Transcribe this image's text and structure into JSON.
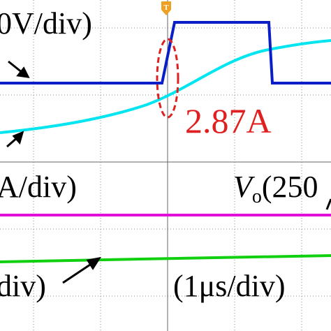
{
  "labels": {
    "ch1_scale": "0V/div)",
    "annotation": "2.87A",
    "ch2_scale": "A/div)",
    "vo_symbol": "V",
    "vo_subscript": "o",
    "vo_scale": "(250",
    "ch4_scale": "div)",
    "time_scale": "(1μs/div)",
    "trigger": "T"
  }
}
